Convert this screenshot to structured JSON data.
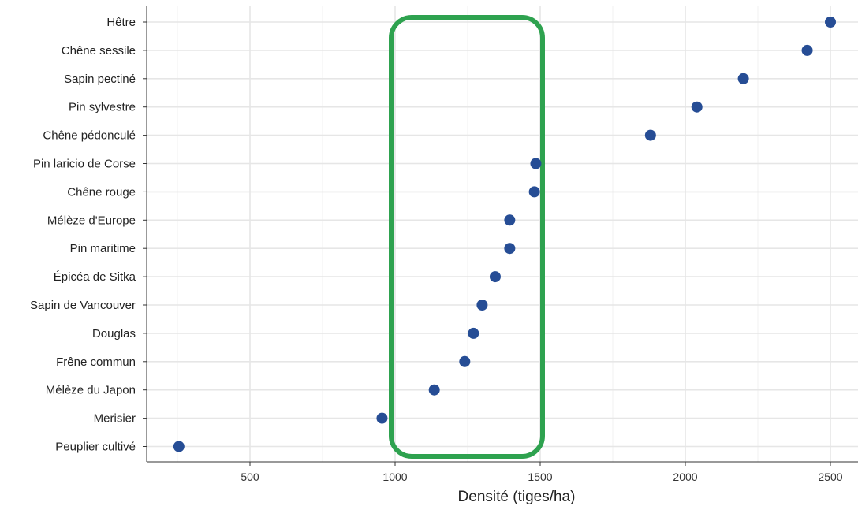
{
  "chart_data": {
    "type": "scatter",
    "xlabel": "Densité (tiges/ha)",
    "ylabel": "",
    "xlim": [
      150,
      2600
    ],
    "xticks": [
      500,
      1000,
      1500,
      2000,
      2500
    ],
    "grid": true,
    "categories": [
      "Hêtre",
      "Chêne sessile",
      "Sapin pectiné",
      "Pin sylvestre",
      "Chêne pédonculé",
      "Pin laricio de Corse",
      "Chêne rouge",
      "Mélèze d'Europe",
      "Pin maritime",
      "Épicéa de Sitka",
      "Sapin de Vancouver",
      "Douglas",
      "Frêne commun",
      "Mélèze du Japon",
      "Merisier",
      "Peuplier cultivé"
    ],
    "values": [
      2500,
      2420,
      2200,
      2040,
      1880,
      1485,
      1480,
      1395,
      1395,
      1345,
      1300,
      1270,
      1240,
      1135,
      955,
      255
    ],
    "point_color": "#264d95",
    "highlight": {
      "shape": "rounded-rectangle",
      "color": "#2ea24f",
      "x_range": [
        1000,
        1500
      ]
    }
  }
}
